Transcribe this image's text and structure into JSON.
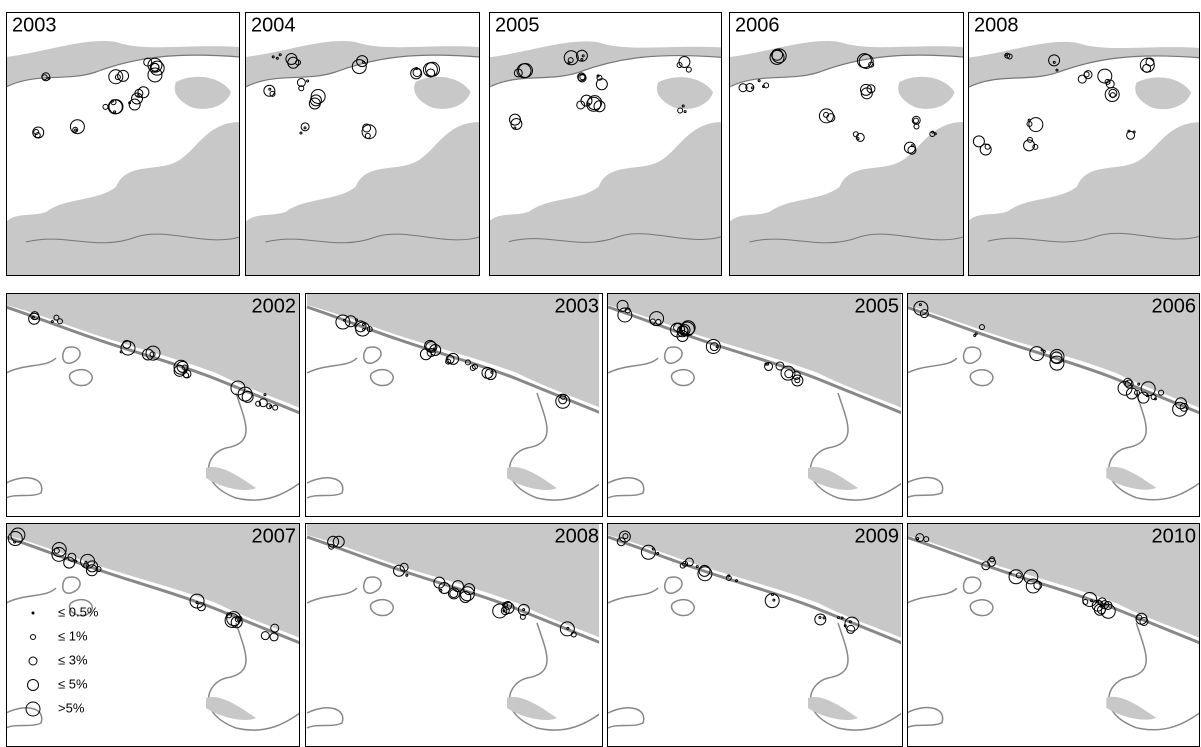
{
  "top_row": {
    "panels": [
      {
        "label": "2003"
      },
      {
        "label": "2004"
      },
      {
        "label": "2005"
      },
      {
        "label": "2006"
      },
      {
        "label": "2008"
      }
    ]
  },
  "middle_row": {
    "panels": [
      {
        "label": "2002"
      },
      {
        "label": "2003"
      },
      {
        "label": "2005"
      },
      {
        "label": "2006"
      }
    ]
  },
  "bottom_row": {
    "panels": [
      {
        "label": "2007"
      },
      {
        "label": "2008"
      },
      {
        "label": "2009"
      },
      {
        "label": "2010"
      }
    ]
  },
  "legend": {
    "items": [
      {
        "label": "≤ 0.5%"
      },
      {
        "label": "≤ 1%"
      },
      {
        "label": "≤ 3%"
      },
      {
        "label": "≤ 5%"
      },
      {
        "label": ">5%"
      }
    ]
  }
}
